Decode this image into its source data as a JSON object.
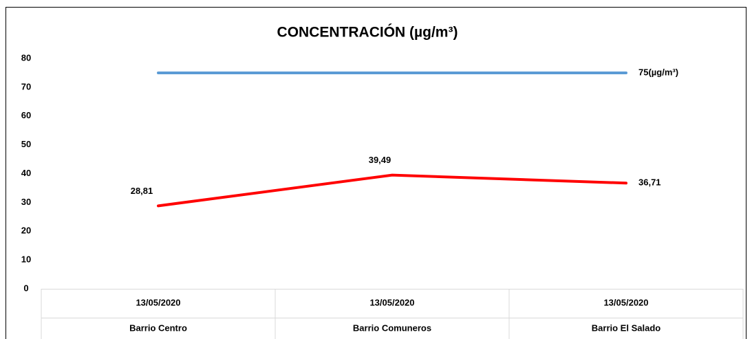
{
  "chart_data": {
    "type": "line",
    "title": "CONCENTRACIÓN (µg/m³)",
    "categories": [
      [
        "13/05/2020",
        "Barrio Centro"
      ],
      [
        "13/05/2020",
        "Barrio Comuneros"
      ],
      [
        "13/05/2020",
        "Barrio El Salado"
      ]
    ],
    "series": [
      {
        "color": "#5b9bd5",
        "values": [
          75,
          75,
          75
        ],
        "value_labels": [
          null,
          null,
          "75(µg/m³)"
        ]
      },
      {
        "color": "#ff0000",
        "values": [
          28.81,
          39.49,
          36.71
        ],
        "value_labels": [
          "28,81",
          "39,49",
          "36,71"
        ]
      }
    ],
    "ylim": [
      0,
      80
    ],
    "yticks": [
      0,
      10,
      20,
      30,
      40,
      50,
      60,
      70,
      80
    ],
    "grid": false
  }
}
